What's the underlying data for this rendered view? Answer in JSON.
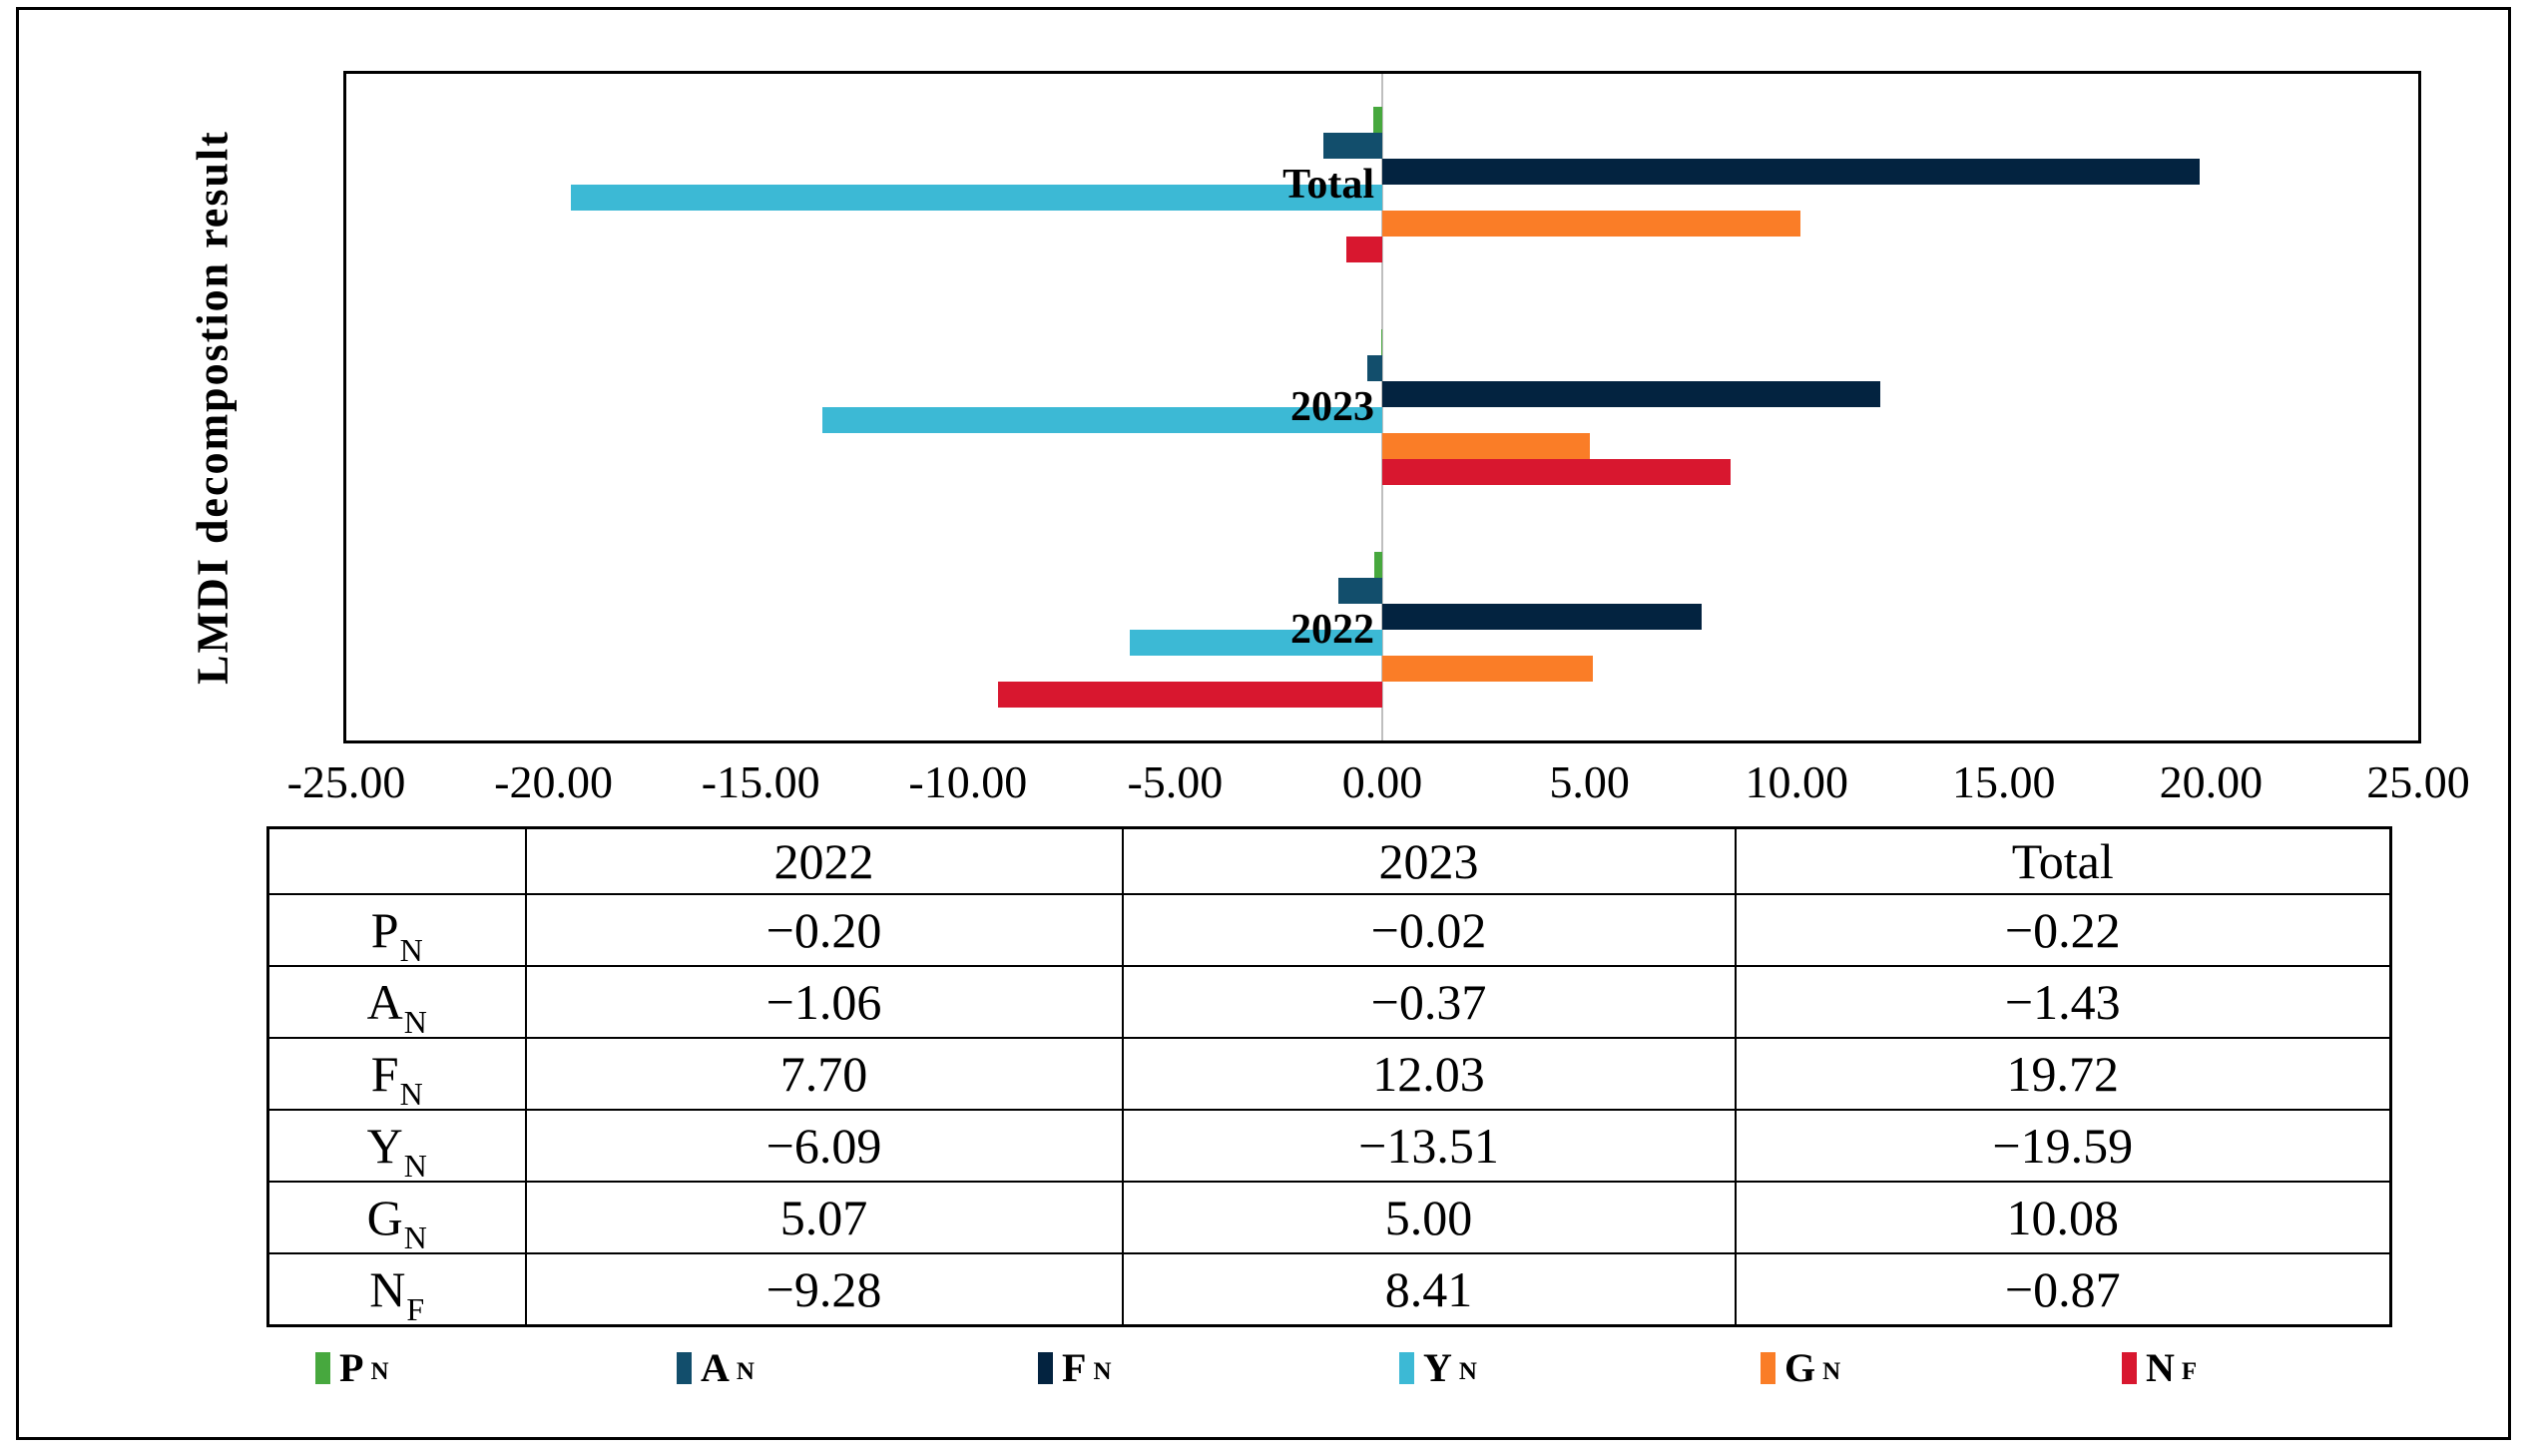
{
  "figure": {
    "y_axis_title": "LMDI decompostion result"
  },
  "chart_data": {
    "type": "bar",
    "orientation": "horizontal",
    "title": "",
    "xlabel": "",
    "ylabel": "LMDI decompostion result",
    "xlim": [
      -25,
      25
    ],
    "x_ticks": [
      "-25.00",
      "-20.00",
      "-15.00",
      "-10.00",
      "-5.00",
      "0.00",
      "5.00",
      "10.00",
      "15.00",
      "20.00",
      "25.00"
    ],
    "grid": "zero-axis-line-only",
    "zero_line_color": "#bfbfbf",
    "legend_position": "bottom",
    "columns": [
      "2022",
      "2023",
      "Total"
    ],
    "categories_display_order": [
      "Total",
      "2023",
      "2022"
    ],
    "series": [
      {
        "name": "P",
        "sub": "N",
        "color": "#47A83E",
        "values": [
          -0.2,
          -0.02,
          -0.22
        ]
      },
      {
        "name": "A",
        "sub": "N",
        "color": "#124E6C",
        "values": [
          -1.06,
          -0.37,
          -1.43
        ]
      },
      {
        "name": "F",
        "sub": "N",
        "color": "#032340",
        "values": [
          7.7,
          12.03,
          19.72
        ]
      },
      {
        "name": "Y",
        "sub": "N",
        "color": "#3CB9D5",
        "values": [
          -6.09,
          -13.51,
          -19.59
        ]
      },
      {
        "name": "G",
        "sub": "N",
        "color": "#FA7D27",
        "values": [
          5.07,
          5.0,
          10.08
        ]
      },
      {
        "name": "N",
        "sub": "F",
        "color": "#D8172F",
        "values": [
          -9.28,
          8.41,
          -0.87
        ]
      }
    ]
  },
  "table": {
    "headers": [
      "",
      "2022",
      "2023",
      "Total"
    ],
    "rows": [
      {
        "label": "P",
        "sub": "N",
        "cells": [
          "−0.20",
          "−0.02",
          "−0.22"
        ]
      },
      {
        "label": "A",
        "sub": "N",
        "cells": [
          "−1.06",
          "−0.37",
          "−1.43"
        ]
      },
      {
        "label": "F",
        "sub": "N",
        "cells": [
          "7.70",
          "12.03",
          "19.72"
        ]
      },
      {
        "label": "Y",
        "sub": "N",
        "cells": [
          "−6.09",
          "−13.51",
          "−19.59"
        ]
      },
      {
        "label": "G",
        "sub": "N",
        "cells": [
          "5.07",
          "5.00",
          "10.08"
        ]
      },
      {
        "label": "N",
        "sub": "F",
        "cells": [
          "−9.28",
          "8.41",
          "−0.87"
        ]
      }
    ]
  }
}
